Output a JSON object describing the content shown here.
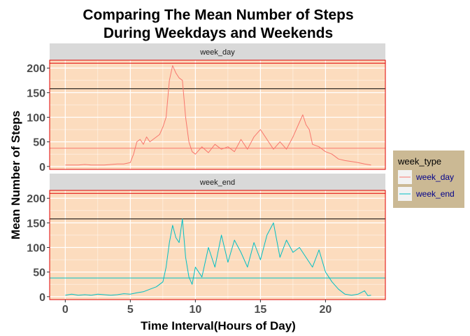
{
  "chart_data": {
    "type": "line",
    "title_lines": [
      "Comparing The Mean Number of Steps",
      "During Weekdays and Weekends"
    ],
    "xlabel": "Time Interval(Hours of Day)",
    "ylabel": "Mean Number of Steps",
    "xlim": [
      -1.2,
      24.6
    ],
    "ylim": [
      -6,
      216
    ],
    "x_ticks": [
      0,
      5,
      10,
      15,
      20
    ],
    "y_ticks": [
      0,
      50,
      100,
      150,
      200
    ],
    "grid": true,
    "panel_background": "#fcdcbe",
    "panel_border": "#e00000",
    "strip_background": "#d9d9d9",
    "legend": {
      "title": "week_type",
      "position": "right",
      "background": "#cbb994",
      "entries": [
        "week_day",
        "week_end"
      ]
    },
    "series_colors": {
      "week_day": "#f8766d",
      "week_end": "#00bfc4"
    },
    "panels": [
      {
        "strip": "week_day",
        "series": "week_day",
        "hlines": [
          {
            "y": 210,
            "color": "#e00000"
          },
          {
            "y": 158,
            "color": "#000000"
          },
          {
            "y": 37,
            "color": "#f8766d"
          }
        ],
        "x": [
          0,
          0.5,
          1,
          1.5,
          2,
          2.5,
          3,
          3.5,
          4,
          4.5,
          5,
          5.25,
          5.5,
          5.75,
          6,
          6.25,
          6.5,
          6.75,
          7,
          7.25,
          7.5,
          7.75,
          8,
          8.25,
          8.5,
          8.75,
          9,
          9.25,
          9.5,
          9.75,
          10,
          10.5,
          11,
          11.5,
          12,
          12.5,
          13,
          13.5,
          14,
          14.5,
          15,
          15.5,
          16,
          16.5,
          17,
          17.5,
          18,
          18.25,
          18.5,
          18.75,
          19,
          19.5,
          20,
          20.5,
          21,
          21.5,
          22,
          22.5,
          23,
          23.5
        ],
        "y": [
          3,
          3,
          3,
          4,
          3,
          3,
          3,
          4,
          5,
          5,
          8,
          25,
          50,
          55,
          45,
          60,
          50,
          55,
          60,
          65,
          80,
          100,
          175,
          205,
          190,
          180,
          175,
          100,
          50,
          30,
          25,
          40,
          28,
          45,
          35,
          40,
          30,
          55,
          35,
          60,
          75,
          55,
          35,
          50,
          35,
          60,
          90,
          105,
          85,
          75,
          45,
          40,
          30,
          25,
          15,
          12,
          10,
          8,
          5,
          3
        ]
      },
      {
        "strip": "week_end",
        "series": "week_end",
        "hlines": [
          {
            "y": 210,
            "color": "#e00000"
          },
          {
            "y": 158,
            "color": "#000000"
          },
          {
            "y": 38,
            "color": "#00bfc4"
          }
        ],
        "x": [
          0,
          0.5,
          1,
          1.5,
          2,
          2.5,
          3,
          3.5,
          4,
          4.5,
          5,
          5.5,
          6,
          6.5,
          7,
          7.5,
          7.75,
          8,
          8.25,
          8.5,
          8.75,
          9,
          9.25,
          9.5,
          9.75,
          10,
          10.5,
          11,
          11.5,
          12,
          12.5,
          13,
          13.5,
          14,
          14.5,
          15,
          15.5,
          16,
          16.5,
          17,
          17.5,
          18,
          18.5,
          19,
          19.5,
          20,
          20.5,
          21,
          21.5,
          22,
          22.5,
          23,
          23.25,
          23.5
        ],
        "y": [
          3,
          5,
          3,
          4,
          3,
          5,
          4,
          3,
          4,
          6,
          5,
          8,
          10,
          15,
          20,
          30,
          60,
          110,
          145,
          120,
          110,
          158,
          80,
          40,
          25,
          60,
          40,
          100,
          60,
          125,
          70,
          115,
          90,
          60,
          110,
          75,
          125,
          150,
          80,
          115,
          90,
          100,
          80,
          60,
          95,
          50,
          30,
          15,
          5,
          3,
          5,
          12,
          2,
          3
        ]
      }
    ]
  }
}
